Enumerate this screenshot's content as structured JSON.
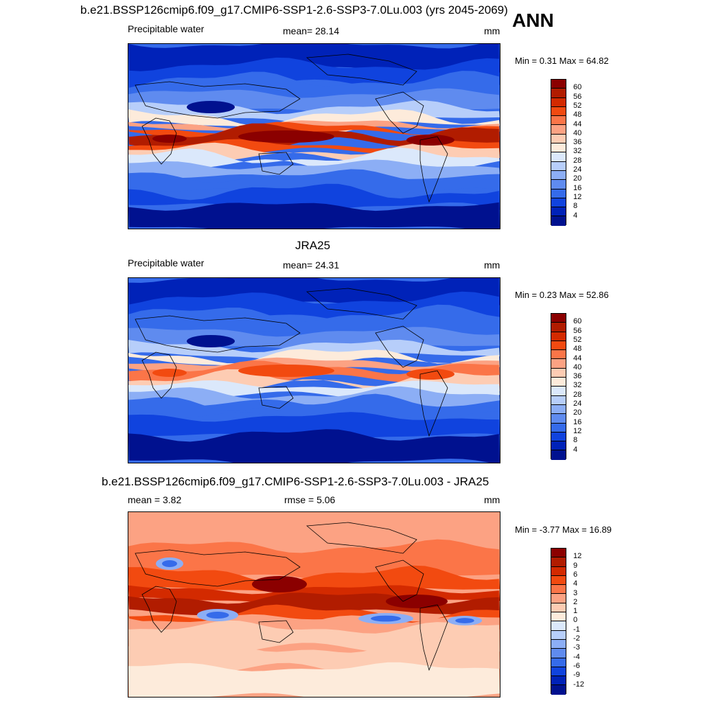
{
  "season": "ANN",
  "panels": [
    {
      "title": "b.e21.BSSP126cmip6.f09_g17.CMIP6-SSP1-2.6-SSP3-7.0Lu.003 (yrs 2045-2069)",
      "left_label": "Precipitable water",
      "center_label": "mean=  28.14",
      "units": "mm",
      "minmax": "Min =   0.31 Max =  64.82",
      "colorbar": {
        "ticks": [
          "60",
          "56",
          "52",
          "48",
          "44",
          "40",
          "36",
          "32",
          "28",
          "24",
          "20",
          "16",
          "12",
          "8",
          "4"
        ],
        "colors": [
          "#8b0000",
          "#b11c00",
          "#d32a00",
          "#f24a10",
          "#fb7548",
          "#fca283",
          "#fdccb3",
          "#fdebdb",
          "#dbe8fb",
          "#b7cefa",
          "#8caef5",
          "#5f8bef",
          "#356bea",
          "#1043de",
          "#0022b8",
          "#00118f"
        ]
      },
      "map_data": {
        "field": "precipitable water",
        "bands": [
          {
            "region": "polar south",
            "value_range": [
              0,
              8
            ]
          },
          {
            "region": "southern mid-latitudes",
            "value_range": [
              8,
              20
            ]
          },
          {
            "region": "southern subtropics",
            "value_range": [
              20,
              36
            ]
          },
          {
            "region": "tropics (ITCZ, Maritime Continent)",
            "value_range": [
              44,
              64
            ]
          },
          {
            "region": "northern subtropics",
            "value_range": [
              20,
              36
            ]
          },
          {
            "region": "northern mid-latitudes",
            "value_range": [
              8,
              20
            ]
          },
          {
            "region": "polar north / Tibet",
            "value_range": [
              0,
              8
            ]
          }
        ]
      }
    },
    {
      "title": "JRA25",
      "left_label": "Precipitable water",
      "center_label": "mean=  24.31",
      "units": "mm",
      "minmax": "Min =   0.23 Max =  52.86",
      "colorbar": {
        "ticks": [
          "60",
          "56",
          "52",
          "48",
          "44",
          "40",
          "36",
          "32",
          "28",
          "24",
          "20",
          "16",
          "12",
          "8",
          "4"
        ],
        "colors": [
          "#8b0000",
          "#b11c00",
          "#d32a00",
          "#f24a10",
          "#fb7548",
          "#fca283",
          "#fdccb3",
          "#fdebdb",
          "#dbe8fb",
          "#b7cefa",
          "#8caef5",
          "#5f8bef",
          "#356bea",
          "#1043de",
          "#0022b8",
          "#00118f"
        ]
      },
      "map_data": {
        "field": "precipitable water",
        "bands": [
          {
            "region": "polar south",
            "value_range": [
              0,
              8
            ]
          },
          {
            "region": "southern mid-latitudes",
            "value_range": [
              8,
              20
            ]
          },
          {
            "region": "southern subtropics",
            "value_range": [
              20,
              32
            ]
          },
          {
            "region": "tropics",
            "value_range": [
              40,
              52
            ]
          },
          {
            "region": "northern subtropics",
            "value_range": [
              20,
              32
            ]
          },
          {
            "region": "northern mid-latitudes",
            "value_range": [
              8,
              20
            ]
          },
          {
            "region": "polar north",
            "value_range": [
              0,
              8
            ]
          }
        ]
      }
    },
    {
      "title": "b.e21.BSSP126cmip6.f09_g17.CMIP6-SSP1-2.6-SSP3-7.0Lu.003 - JRA25",
      "left_label": "mean =   3.82",
      "center_label": "rmse =   5.06",
      "units": "mm",
      "minmax": "Min =  -3.77 Max =  16.89",
      "colorbar": {
        "ticks": [
          "12",
          "9",
          "6",
          "4",
          "3",
          "2",
          "1",
          "0",
          "-1",
          "-2",
          "-3",
          "-4",
          "-6",
          "-9",
          "-12"
        ],
        "colors": [
          "#8b0000",
          "#b11c00",
          "#d32a00",
          "#f24a10",
          "#fb7548",
          "#fca283",
          "#fdccb3",
          "#fdebdb",
          "#dbe8fb",
          "#b7cefa",
          "#8caef5",
          "#5f8bef",
          "#356bea",
          "#1043de",
          "#0022b8",
          "#00118f"
        ]
      },
      "map_data": {
        "field": "difference",
        "bands": [
          {
            "region": "polar south",
            "value_range": [
              0,
              1
            ]
          },
          {
            "region": "southern mid-latitudes",
            "value_range": [
              1,
              3
            ]
          },
          {
            "region": "southern subtropical oceans",
            "value_range": [
              -4,
              -1
            ]
          },
          {
            "region": "tropics",
            "value_range": [
              6,
              16
            ]
          },
          {
            "region": "northern mid-latitudes",
            "value_range": [
              2,
              6
            ]
          },
          {
            "region": "polar north",
            "value_range": [
              1,
              3
            ]
          }
        ]
      }
    }
  ]
}
